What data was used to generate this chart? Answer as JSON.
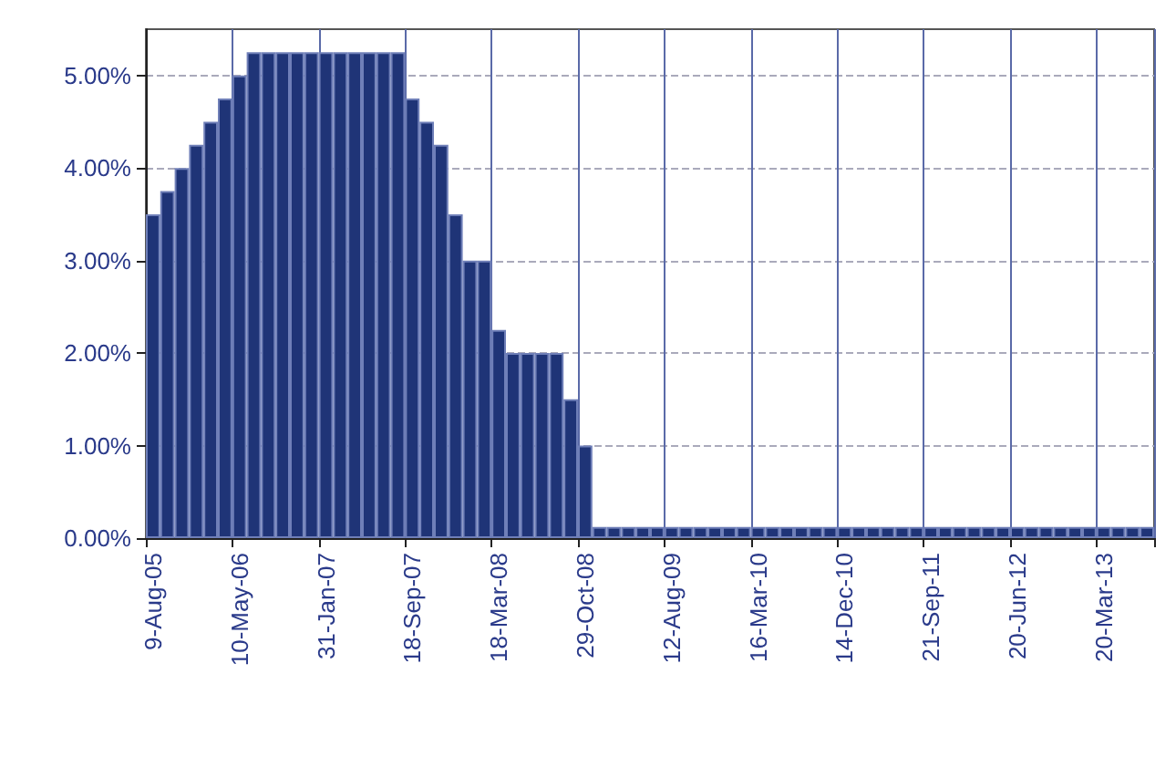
{
  "chart_data": {
    "type": "bar",
    "categories": [
      "9-Aug-05",
      null,
      null,
      null,
      null,
      null,
      "10-May-06",
      null,
      null,
      null,
      null,
      null,
      "31-Jan-07",
      null,
      null,
      null,
      null,
      null,
      "18-Sep-07",
      null,
      null,
      null,
      null,
      null,
      "18-Mar-08",
      null,
      null,
      null,
      null,
      null,
      "29-Oct-08",
      null,
      null,
      null,
      null,
      null,
      "12-Aug-09",
      null,
      null,
      null,
      null,
      null,
      "16-Mar-10",
      null,
      null,
      null,
      null,
      null,
      "14-Dec-10",
      null,
      null,
      null,
      null,
      null,
      "21-Sep-11",
      null,
      null,
      null,
      null,
      null,
      "20-Jun-12",
      null,
      null,
      null,
      null,
      null,
      "20-Mar-13",
      null,
      null,
      null
    ],
    "values": [
      3.5,
      3.75,
      4.0,
      4.25,
      4.5,
      4.75,
      5.0,
      5.25,
      5.25,
      5.25,
      5.25,
      5.25,
      5.25,
      5.25,
      5.25,
      5.25,
      5.25,
      5.25,
      4.75,
      4.5,
      4.25,
      3.5,
      3.0,
      3.0,
      2.25,
      2.0,
      2.0,
      2.0,
      2.0,
      1.5,
      1.0,
      0.12,
      0.12,
      0.12,
      0.12,
      0.12,
      0.12,
      0.12,
      0.12,
      0.12,
      0.12,
      0.12,
      0.12,
      0.12,
      0.12,
      0.12,
      0.12,
      0.12,
      0.12,
      0.12,
      0.12,
      0.12,
      0.12,
      0.12,
      0.12,
      0.12,
      0.12,
      0.12,
      0.12,
      0.12,
      0.12,
      0.12,
      0.12,
      0.12,
      0.12,
      0.12,
      0.12,
      0.12,
      0.12,
      0.12
    ],
    "color": "#1f3477",
    "ylim": [
      0,
      5.5
    ],
    "yticks": [
      {
        "value": 0,
        "label": "0.00%"
      },
      {
        "value": 1,
        "label": "1.00%"
      },
      {
        "value": 2,
        "label": "2.00%"
      },
      {
        "value": 3,
        "label": "3.00%"
      },
      {
        "value": 4,
        "label": "4.00%"
      },
      {
        "value": 5,
        "label": "5.00%"
      }
    ],
    "grid": true
  }
}
